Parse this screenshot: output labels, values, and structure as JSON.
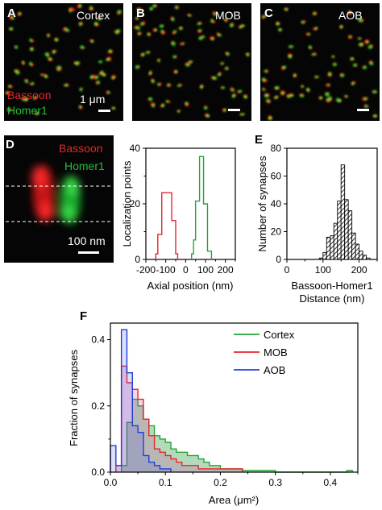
{
  "panels": {
    "A": {
      "letter": "A",
      "label": "Cortex",
      "legend_red": "Bassoon",
      "legend_green": "Homer1",
      "scalebar": "1 μm"
    },
    "B": {
      "letter": "B",
      "label": "MOB"
    },
    "C": {
      "letter": "C",
      "label": "AOB"
    },
    "D": {
      "letter": "D",
      "label_red": "Bassoon",
      "label_green": "Homer1",
      "scalebar": "100 nm"
    },
    "E": {
      "letter": "E"
    },
    "F": {
      "letter": "F"
    }
  },
  "colors": {
    "red": "#e8252a",
    "green": "#22a635",
    "blue": "#1f3fd6",
    "image_bg": "#050505"
  },
  "chart_data": [
    {
      "id": "D-profile",
      "type": "line",
      "xlabel": "Axial position (nm)",
      "ylabel": "Localization points",
      "xlim": [
        -200,
        250
      ],
      "ylim": [
        0,
        40
      ],
      "xticks": [
        "-200",
        "-100",
        "0",
        "100",
        "200"
      ],
      "yticks": [
        "0",
        "20",
        "40"
      ],
      "series": [
        {
          "name": "Bassoon",
          "color": "#e8252a",
          "x": [
            -150,
            -150,
            -140,
            -140,
            -120,
            -120,
            -70,
            -70,
            -50,
            -50,
            -40,
            -40
          ],
          "y": [
            0,
            2,
            2,
            9,
            9,
            24,
            24,
            14,
            14,
            2,
            2,
            0
          ]
        },
        {
          "name": "Homer1",
          "color": "#22a635",
          "x": [
            30,
            30,
            40,
            40,
            50,
            50,
            70,
            70,
            90,
            90,
            110,
            110,
            130,
            130
          ],
          "y": [
            0,
            2,
            2,
            7,
            7,
            21,
            21,
            37,
            37,
            20,
            20,
            3,
            3,
            0
          ]
        }
      ]
    },
    {
      "id": "E-hist",
      "type": "bar",
      "xlabel": "Bassoon-Homer1 Distance (nm)",
      "xlabel_lines": [
        "Bassoon-Homer1",
        "Distance (nm)"
      ],
      "ylabel": "Number of synapses",
      "xlim": [
        0,
        250
      ],
      "ylim": [
        0,
        80
      ],
      "xticks": [
        "0",
        "100",
        "200"
      ],
      "yticks": [
        "0",
        "20",
        "40",
        "60",
        "80"
      ],
      "bin_width": 10,
      "bin_starts": [
        90,
        100,
        110,
        120,
        130,
        140,
        150,
        160,
        170,
        180,
        190,
        200,
        210,
        220
      ],
      "values": [
        1,
        5,
        16,
        17,
        26,
        42,
        68,
        43,
        35,
        19,
        11,
        6,
        3,
        1
      ]
    },
    {
      "id": "F-hist",
      "type": "area",
      "xlabel": "Area (μm²)",
      "ylabel": "Fraction of synapses",
      "xlim": [
        0,
        0.45
      ],
      "ylim": [
        0,
        0.45
      ],
      "xticks": [
        "0.0",
        "0.1",
        "0.2",
        "0.3",
        "0.4"
      ],
      "yticks": [
        "0.0",
        "0.2",
        "0.4"
      ],
      "bin_width": 0.01,
      "legend_position": "top-right",
      "series": [
        {
          "name": "Cortex",
          "color": "#22a635",
          "bins": [
            0.02,
            0.03,
            0.04,
            0.05,
            0.06,
            0.07,
            0.08,
            0.09,
            0.1,
            0.11,
            0.12,
            0.13,
            0.14,
            0.15,
            0.16,
            0.17,
            0.18,
            0.19,
            0.2,
            0.21,
            0.22,
            0.23,
            0.24,
            0.25,
            0.26,
            0.27,
            0.28,
            0.29,
            0.43
          ],
          "values": [
            0.02,
            0.15,
            0.22,
            0.2,
            0.16,
            0.14,
            0.11,
            0.1,
            0.09,
            0.07,
            0.06,
            0.06,
            0.05,
            0.05,
            0.04,
            0.03,
            0.02,
            0.02,
            0.01,
            0.01,
            0.01,
            0.01,
            0.005,
            0.005,
            0.005,
            0.005,
            0.005,
            0.005,
            0.005
          ]
        },
        {
          "name": "MOB",
          "color": "#e8252a",
          "bins": [
            0.01,
            0.02,
            0.03,
            0.04,
            0.05,
            0.06,
            0.07,
            0.08,
            0.09,
            0.1,
            0.11,
            0.12,
            0.13,
            0.14,
            0.15,
            0.16,
            0.17,
            0.18,
            0.19,
            0.2,
            0.21,
            0.22,
            0.23
          ],
          "values": [
            0.02,
            0.32,
            0.27,
            0.25,
            0.22,
            0.16,
            0.11,
            0.07,
            0.06,
            0.05,
            0.04,
            0.03,
            0.02,
            0.02,
            0.02,
            0.01,
            0.01,
            0.01,
            0.01,
            0.01,
            0.01,
            0.01,
            0.01
          ]
        },
        {
          "name": "AOB",
          "color": "#1f3fd6",
          "bins": [
            0.0,
            0.01,
            0.02,
            0.03,
            0.04,
            0.05,
            0.06,
            0.07,
            0.08,
            0.09,
            0.1
          ],
          "values": [
            0.08,
            0.02,
            0.43,
            0.3,
            0.14,
            0.12,
            0.05,
            0.03,
            0.02,
            0.01,
            0.01
          ]
        }
      ]
    }
  ]
}
